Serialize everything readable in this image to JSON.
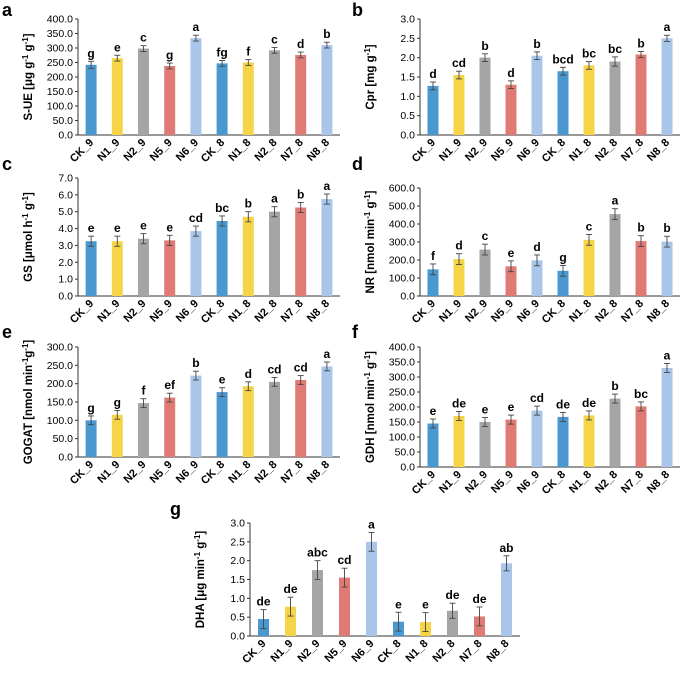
{
  "colors": {
    "blue": "#4a98d0",
    "yellow": "#f5d547",
    "gray": "#a5a5a5",
    "red": "#df7b74",
    "lightblue": "#a9c6ea",
    "axis": "#333333",
    "error": "#444444"
  },
  "chart_data": [
    {
      "panel": "a",
      "type": "bar",
      "ylabel": "S-UE [μg g⁻¹ g⁻¹]",
      "ylim": [
        0,
        400
      ],
      "ytick_step": 50,
      "ytick_decimals": 1,
      "categories": [
        "CK_9",
        "N1_9",
        "N2_9",
        "N5_9",
        "N6_9",
        "CK_8",
        "N1_8",
        "N2_8",
        "N7_8",
        "N8_8"
      ],
      "colors": [
        "blue",
        "yellow",
        "gray",
        "red",
        "lightblue",
        "blue",
        "yellow",
        "gray",
        "red",
        "lightblue"
      ],
      "values": [
        242,
        265,
        298,
        238,
        334,
        247,
        250,
        292,
        276,
        310
      ],
      "errors": [
        12,
        10,
        10,
        10,
        10,
        10,
        10,
        10,
        10,
        10
      ],
      "letters": [
        "g",
        "e",
        "c",
        "g",
        "a",
        "fg",
        "f",
        "c",
        "d",
        "b"
      ]
    },
    {
      "panel": "b",
      "type": "bar",
      "ylabel": "Cpr [mg g⁻¹]",
      "ylim": [
        0,
        3
      ],
      "ytick_step": 0.5,
      "ytick_decimals": 1,
      "categories": [
        "CK_9",
        "N1_9",
        "N2_9",
        "N5_9",
        "N6_9",
        "CK_8",
        "N1_8",
        "N2_8",
        "N7_8",
        "N8_8"
      ],
      "colors": [
        "blue",
        "yellow",
        "gray",
        "red",
        "lightblue",
        "blue",
        "yellow",
        "gray",
        "red",
        "lightblue"
      ],
      "values": [
        1.27,
        1.55,
        2.0,
        1.3,
        2.05,
        1.65,
        1.8,
        1.9,
        2.08,
        2.5
      ],
      "errors": [
        0.1,
        0.1,
        0.1,
        0.1,
        0.1,
        0.1,
        0.1,
        0.12,
        0.08,
        0.08
      ],
      "letters": [
        "d",
        "cd",
        "b",
        "d",
        "b",
        "bcd",
        "bc",
        "bc",
        "b",
        "a"
      ]
    },
    {
      "panel": "c",
      "type": "bar",
      "ylabel": "GS [μmol h⁻¹ g⁻¹]",
      "ylim": [
        0,
        7
      ],
      "ytick_step": 1,
      "ytick_decimals": 1,
      "categories": [
        "CK_9",
        "N1_9",
        "N2_9",
        "N5_9",
        "N6_9",
        "CK_8",
        "N1_8",
        "N2_8",
        "N7_8",
        "N8_8"
      ],
      "colors": [
        "blue",
        "yellow",
        "gray",
        "red",
        "lightblue",
        "blue",
        "yellow",
        "gray",
        "red",
        "lightblue"
      ],
      "values": [
        3.25,
        3.25,
        3.4,
        3.3,
        3.85,
        4.45,
        4.7,
        5.0,
        5.25,
        5.75
      ],
      "errors": [
        0.3,
        0.3,
        0.3,
        0.3,
        0.3,
        0.3,
        0.3,
        0.3,
        0.3,
        0.3
      ],
      "letters": [
        "e",
        "e",
        "e",
        "e",
        "cd",
        "bc",
        "b",
        "a",
        "b",
        "a"
      ]
    },
    {
      "panel": "d",
      "type": "bar",
      "ylabel": "NR [nmol min⁻¹ g⁻¹]",
      "ylim": [
        0,
        600
      ],
      "ytick_step": 100,
      "ytick_decimals": 1,
      "categories": [
        "CK_9",
        "N1_9",
        "N2_9",
        "N5_9",
        "N6_9",
        "CK_8",
        "N1_8",
        "N2_8",
        "N7_8",
        "N8_8"
      ],
      "colors": [
        "blue",
        "yellow",
        "gray",
        "red",
        "lightblue",
        "blue",
        "yellow",
        "gray",
        "red",
        "lightblue"
      ],
      "values": [
        148,
        205,
        258,
        165,
        198,
        140,
        312,
        455,
        305,
        302
      ],
      "errors": [
        30,
        30,
        30,
        30,
        30,
        30,
        30,
        30,
        30,
        30
      ],
      "letters": [
        "f",
        "d",
        "c",
        "e",
        "d",
        "g",
        "c",
        "a",
        "b",
        "b"
      ]
    },
    {
      "panel": "e",
      "type": "bar",
      "ylabel": "GOGAT [nmol min⁻¹g⁻¹]",
      "ylim": [
        0,
        300
      ],
      "ytick_step": 50,
      "ytick_decimals": 1,
      "categories": [
        "CK_9",
        "N1_9",
        "N2_9",
        "N5_9",
        "N6_9",
        "CK_8",
        "N1_8",
        "N2_8",
        "N7_8",
        "N8_8"
      ],
      "colors": [
        "blue",
        "yellow",
        "gray",
        "red",
        "lightblue",
        "blue",
        "yellow",
        "gray",
        "red",
        "lightblue"
      ],
      "values": [
        100,
        115,
        147,
        162,
        222,
        177,
        193,
        205,
        210,
        247
      ],
      "errors": [
        12,
        12,
        12,
        12,
        12,
        12,
        12,
        12,
        12,
        12
      ],
      "letters": [
        "g",
        "g",
        "f",
        "ef",
        "b",
        "e",
        "d",
        "cd",
        "cd",
        "a"
      ]
    },
    {
      "panel": "f",
      "type": "bar",
      "ylabel": "GDH [nmol min⁻¹ g⁻¹]",
      "ylim": [
        0,
        400
      ],
      "ytick_step": 50,
      "ytick_decimals": 1,
      "categories": [
        "CK_9",
        "N1_9",
        "N2_9",
        "N5_9",
        "N6_9",
        "CK_8",
        "N1_8",
        "N2_8",
        "N7_8",
        "N8_8"
      ],
      "colors": [
        "blue",
        "yellow",
        "gray",
        "red",
        "lightblue",
        "blue",
        "yellow",
        "gray",
        "red",
        "lightblue"
      ],
      "values": [
        145,
        170,
        150,
        158,
        188,
        167,
        172,
        228,
        202,
        330
      ],
      "errors": [
        15,
        15,
        15,
        15,
        15,
        15,
        15,
        15,
        15,
        15
      ],
      "letters": [
        "e",
        "de",
        "e",
        "e",
        "cd",
        "de",
        "de",
        "b",
        "bc",
        "a"
      ]
    },
    {
      "panel": "g",
      "type": "bar",
      "ylabel": "DHA [μg min⁻¹ g⁻¹]",
      "ylim": [
        0,
        3
      ],
      "ytick_step": 0.5,
      "ytick_decimals": 1,
      "categories": [
        "CK_9",
        "N1_9",
        "N2_9",
        "N5_9",
        "N6_9",
        "CK_8",
        "N1_8",
        "N2_8",
        "N7_8",
        "N8_8"
      ],
      "colors": [
        "blue",
        "yellow",
        "gray",
        "red",
        "lightblue",
        "blue",
        "yellow",
        "gray",
        "red",
        "lightblue"
      ],
      "values": [
        0.45,
        0.78,
        1.75,
        1.55,
        2.5,
        0.38,
        0.37,
        0.67,
        0.52,
        1.93
      ],
      "errors": [
        0.25,
        0.25,
        0.25,
        0.25,
        0.25,
        0.25,
        0.25,
        0.2,
        0.25,
        0.2
      ],
      "letters": [
        "de",
        "de",
        "abc",
        "cd",
        "a",
        "e",
        "e",
        "de",
        "de",
        "ab"
      ]
    }
  ]
}
